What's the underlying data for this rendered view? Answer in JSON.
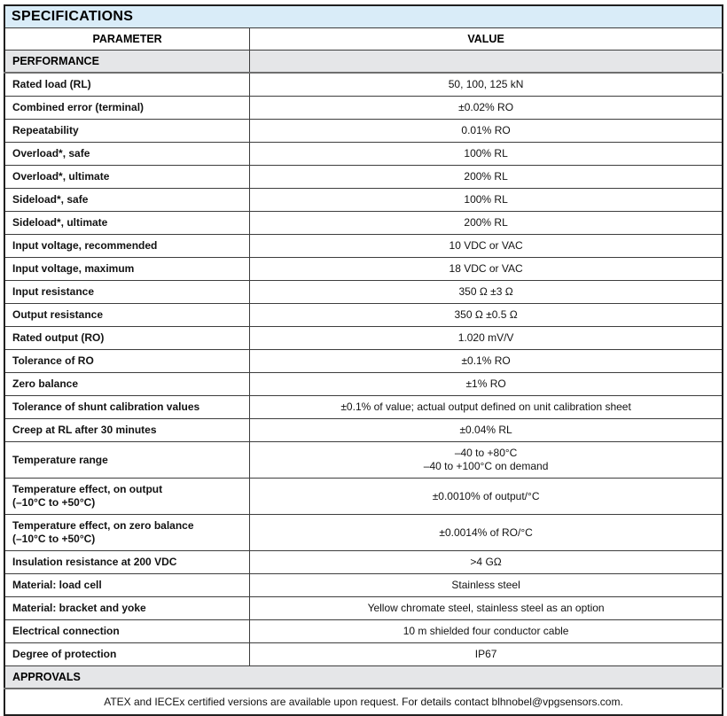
{
  "colors": {
    "title_bg": "#d9ecf8",
    "section_bg": "#e5e6e8",
    "border": "#3d3d3d"
  },
  "table": {
    "title": "SPECIFICATIONS",
    "columns": [
      "PARAMETER",
      "VALUE"
    ],
    "rows": [
      {
        "type": "section-split",
        "label": "PERFORMANCE"
      },
      {
        "type": "data",
        "param": "Rated load (RL)",
        "value": "50, 100, 125 kN"
      },
      {
        "type": "data",
        "param": "Combined error (terminal)",
        "value": "±0.02% RO"
      },
      {
        "type": "data",
        "param": "Repeatability",
        "value": "0.01% RO"
      },
      {
        "type": "data",
        "param": "Overload*, safe",
        "value": "100% RL"
      },
      {
        "type": "data",
        "param": "Overload*, ultimate",
        "value": "200% RL"
      },
      {
        "type": "data",
        "param": "Sideload*, safe",
        "value": "100% RL"
      },
      {
        "type": "data",
        "param": "Sideload*, ultimate",
        "value": "200% RL"
      },
      {
        "type": "data",
        "param": "Input voltage, recommended",
        "value": "10 VDC or VAC"
      },
      {
        "type": "data",
        "param": "Input voltage, maximum",
        "value": "18 VDC or VAC"
      },
      {
        "type": "data",
        "param": "Input resistance",
        "value": "350 Ω ±3 Ω"
      },
      {
        "type": "data",
        "param": "Output resistance",
        "value": "350 Ω ±0.5 Ω"
      },
      {
        "type": "data",
        "param": "Rated output (RO)",
        "value": "1.020 mV/V"
      },
      {
        "type": "data",
        "param": "Tolerance of RO",
        "value": "±0.1% RO"
      },
      {
        "type": "data",
        "param": "Zero balance",
        "value": "±1% RO"
      },
      {
        "type": "data",
        "param": "Tolerance of shunt calibration values",
        "value": "±0.1% of value; actual output defined on unit calibration sheet"
      },
      {
        "type": "data",
        "param": "Creep at RL after 30 minutes",
        "value": "±0.04% RL"
      },
      {
        "type": "data",
        "param": "Temperature range",
        "value": "–40 to +80°C",
        "value2": "–40 to +100°C on demand"
      },
      {
        "type": "data",
        "param": "Temperature effect, on output",
        "param2": "(–10°C to +50°C)",
        "value": "±0.0010% of output/°C"
      },
      {
        "type": "data",
        "param": "Temperature effect, on zero balance",
        "param2": "(–10°C to +50°C)",
        "value": "±0.0014% of RO/°C"
      },
      {
        "type": "data",
        "param": "Insulation resistance at 200 VDC",
        "value": ">4 GΩ"
      },
      {
        "type": "data",
        "param": "Material: load cell",
        "value": "Stainless steel"
      },
      {
        "type": "data",
        "param": "Material: bracket and yoke",
        "value": "Yellow chromate steel, stainless steel as an option"
      },
      {
        "type": "data",
        "param": "Electrical connection",
        "value": "10 m shielded four conductor cable"
      },
      {
        "type": "data",
        "param": "Degree of protection",
        "value": "IP67"
      },
      {
        "type": "section",
        "label": "APPROVALS"
      },
      {
        "type": "note",
        "text": "ATEX and IECEx certified versions are available upon request. For details contact blhnobel@vpgsensors.com."
      }
    ]
  }
}
